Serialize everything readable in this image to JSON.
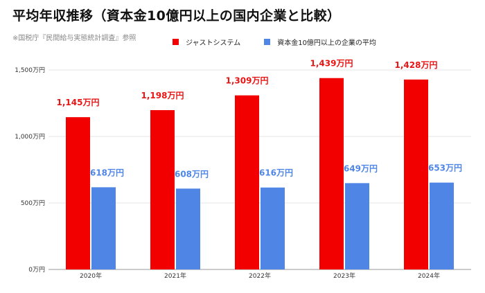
{
  "header": {
    "title": "平均年収推移（資本金10億円以上の国内企業と比較）",
    "source": "※国税庁『民間給与実態統計調査』参照"
  },
  "colors": {
    "series1": "#f20000",
    "series2": "#4f86e6",
    "label1": "#e81515",
    "label2": "#4f86e6",
    "grid": "#e5e5e5"
  },
  "chart_data": {
    "type": "bar",
    "categories": [
      "2020年",
      "2021年",
      "2022年",
      "2023年",
      "2024年"
    ],
    "series": [
      {
        "name": "ジャストシステム",
        "values": [
          1145,
          1198,
          1309,
          1439,
          1428
        ],
        "labels": [
          "1,145万円",
          "1,198万円",
          "1,309万円",
          "1,439万円",
          "1,428万円"
        ]
      },
      {
        "name": "資本金10億円以上の企業の平均",
        "values": [
          618,
          608,
          616,
          649,
          653
        ],
        "labels": [
          "618万円",
          "608万円",
          "616万円",
          "649万円",
          "653万円"
        ]
      }
    ],
    "yticks": [
      0,
      500,
      1000,
      1500
    ],
    "ytick_labels": [
      "0万円",
      "500万円",
      "1,000万円",
      "1,500万円"
    ],
    "ylim": [
      0,
      1500
    ],
    "grid": true,
    "legend_position": "top"
  }
}
